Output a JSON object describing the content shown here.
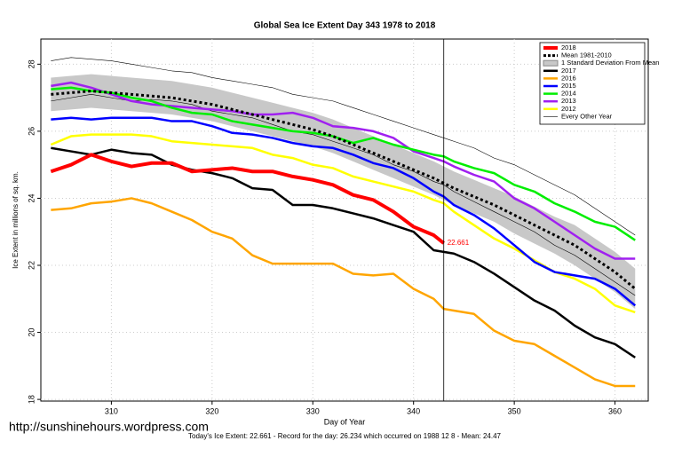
{
  "chart_data": {
    "type": "line",
    "title": "Global Sea Ice Extent Day 343 1978 to 2018",
    "x_label": "Day of Year",
    "y_label": "Ice Extent in millions of sq. km.",
    "footer": "Today's Ice Extent: 22.661  - Record for the day: 26.234 which occurred on 1988 12 8  - Mean: 24.47",
    "watermark": "http://sunshinehours.wordpress.com",
    "annotation": {
      "text": "22.661",
      "x": 343,
      "y": 22.66
    },
    "marker_x": 343,
    "xlim": [
      303,
      363.3
    ],
    "ylim": [
      17.95,
      28.75
    ],
    "xticks": [
      310,
      320,
      330,
      340,
      350,
      360
    ],
    "yticks": [
      18,
      20,
      22,
      24,
      26,
      28
    ],
    "x": [
      304,
      306,
      308,
      310,
      312,
      314,
      316,
      318,
      320,
      322,
      324,
      326,
      328,
      330,
      332,
      334,
      336,
      338,
      340,
      342,
      343,
      344,
      346,
      348,
      350,
      352,
      354,
      356,
      358,
      360,
      362
    ],
    "band": {
      "name": "1 Standard Deviation From Mean",
      "color": "#c8c8c8",
      "upper": [
        27.6,
        27.65,
        27.7,
        27.65,
        27.6,
        27.55,
        27.5,
        27.4,
        27.3,
        27.15,
        27.0,
        26.85,
        26.7,
        26.55,
        26.35,
        26.1,
        25.85,
        25.6,
        25.35,
        25.1,
        24.95,
        24.8,
        24.55,
        24.3,
        24.05,
        23.75,
        23.45,
        23.2,
        22.8,
        22.4,
        21.9
      ],
      "lower": [
        26.6,
        26.65,
        26.7,
        26.65,
        26.6,
        26.55,
        26.5,
        26.4,
        26.3,
        26.15,
        26.0,
        25.85,
        25.7,
        25.55,
        25.35,
        25.1,
        24.85,
        24.6,
        24.35,
        24.1,
        23.95,
        23.8,
        23.55,
        23.3,
        22.95,
        22.65,
        22.35,
        22.0,
        21.6,
        21.2,
        20.7
      ]
    },
    "other_years": {
      "name": "Every Other Year",
      "color": "#000000",
      "lines": [
        [
          28.1,
          28.2,
          28.15,
          28.1,
          28.0,
          27.9,
          27.8,
          27.75,
          27.6,
          27.5,
          27.4,
          27.3,
          27.1,
          27.0,
          26.9,
          26.7,
          26.5,
          26.3,
          26.1,
          25.9,
          25.8,
          25.7,
          25.5,
          25.2,
          25.0,
          24.7,
          24.4,
          24.1,
          23.7,
          23.3,
          22.9
        ],
        [
          26.9,
          27.0,
          27.1,
          27.0,
          26.9,
          26.95,
          26.9,
          26.8,
          26.6,
          26.5,
          26.4,
          26.2,
          26.0,
          25.9,
          25.7,
          25.5,
          25.3,
          25.0,
          24.8,
          24.5,
          24.4,
          24.2,
          23.9,
          23.6,
          23.3,
          23.0,
          22.6,
          22.3,
          21.9,
          21.5,
          21.1
        ]
      ]
    },
    "series": [
      {
        "name": "2018",
        "color": "#ff0000",
        "width": 4,
        "values": [
          24.8,
          25.0,
          25.3,
          25.1,
          24.95,
          25.05,
          25.05,
          24.8,
          24.85,
          24.9,
          24.8,
          24.8,
          24.65,
          24.55,
          24.4,
          24.1,
          23.95,
          23.6,
          23.15,
          22.9,
          22.66,
          null,
          null,
          null,
          null,
          null,
          null,
          null,
          null,
          null,
          null
        ]
      },
      {
        "name": "Mean 1981-2010",
        "color": "#000000",
        "width": 3,
        "dashed": true,
        "values": [
          27.1,
          27.15,
          27.2,
          27.15,
          27.1,
          27.05,
          27.0,
          26.9,
          26.8,
          26.65,
          26.5,
          26.35,
          26.2,
          26.05,
          25.85,
          25.6,
          25.35,
          25.1,
          24.85,
          24.6,
          24.45,
          24.3,
          24.05,
          23.8,
          23.5,
          23.2,
          22.9,
          22.6,
          22.2,
          21.8,
          21.3
        ]
      },
      {
        "name": "2017",
        "color": "#000000",
        "width": 2.5,
        "values": [
          25.5,
          25.4,
          25.3,
          25.45,
          25.35,
          25.3,
          25.0,
          24.85,
          24.75,
          24.6,
          24.3,
          24.25,
          23.8,
          23.8,
          23.7,
          23.55,
          23.4,
          23.2,
          23.0,
          22.45,
          22.4,
          22.35,
          22.1,
          21.75,
          21.35,
          20.95,
          20.65,
          20.2,
          19.85,
          19.65,
          19.25
        ]
      },
      {
        "name": "2016",
        "color": "#ffa500",
        "width": 2.5,
        "values": [
          23.65,
          23.7,
          23.85,
          23.9,
          24.0,
          23.85,
          23.6,
          23.35,
          23.0,
          22.8,
          22.3,
          22.05,
          22.05,
          22.05,
          22.05,
          21.75,
          21.7,
          21.75,
          21.3,
          21.0,
          20.7,
          20.65,
          20.55,
          20.05,
          19.75,
          19.65,
          19.3,
          18.95,
          18.6,
          18.4,
          18.4
        ]
      },
      {
        "name": "2015",
        "color": "#0000ff",
        "width": 2.5,
        "values": [
          26.35,
          26.4,
          26.35,
          26.4,
          26.4,
          26.4,
          26.3,
          26.3,
          26.15,
          25.95,
          25.9,
          25.8,
          25.65,
          25.55,
          25.5,
          25.3,
          25.05,
          24.9,
          24.6,
          24.2,
          24.05,
          23.8,
          23.5,
          23.1,
          22.6,
          22.1,
          21.8,
          21.7,
          21.6,
          21.3,
          20.8
        ]
      },
      {
        "name": "2014",
        "color": "#00ee00",
        "width": 2.5,
        "values": [
          27.25,
          27.3,
          27.2,
          27.15,
          27.0,
          26.9,
          26.7,
          26.55,
          26.5,
          26.3,
          26.2,
          26.1,
          26.0,
          25.95,
          25.85,
          25.65,
          25.8,
          25.6,
          25.45,
          25.3,
          25.25,
          25.1,
          24.9,
          24.75,
          24.4,
          24.2,
          23.85,
          23.6,
          23.3,
          23.15,
          22.75
        ]
      },
      {
        "name": "2013",
        "color": "#a020f0",
        "width": 2.5,
        "values": [
          27.35,
          27.45,
          27.3,
          27.1,
          26.9,
          26.8,
          26.75,
          26.7,
          26.65,
          26.6,
          26.5,
          26.5,
          26.55,
          26.4,
          26.15,
          26.1,
          26.0,
          25.8,
          25.4,
          25.2,
          25.1,
          24.95,
          24.7,
          24.5,
          24.0,
          23.7,
          23.3,
          22.9,
          22.5,
          22.2,
          22.2
        ]
      },
      {
        "name": "2012",
        "color": "#ffff00",
        "width": 2.5,
        "values": [
          25.6,
          25.85,
          25.9,
          25.9,
          25.9,
          25.85,
          25.7,
          25.65,
          25.6,
          25.55,
          25.5,
          25.3,
          25.2,
          25.0,
          24.9,
          24.65,
          24.5,
          24.35,
          24.2,
          23.95,
          23.85,
          23.6,
          23.2,
          22.8,
          22.5,
          22.15,
          21.8,
          21.6,
          21.3,
          20.8,
          20.6
        ]
      }
    ]
  }
}
